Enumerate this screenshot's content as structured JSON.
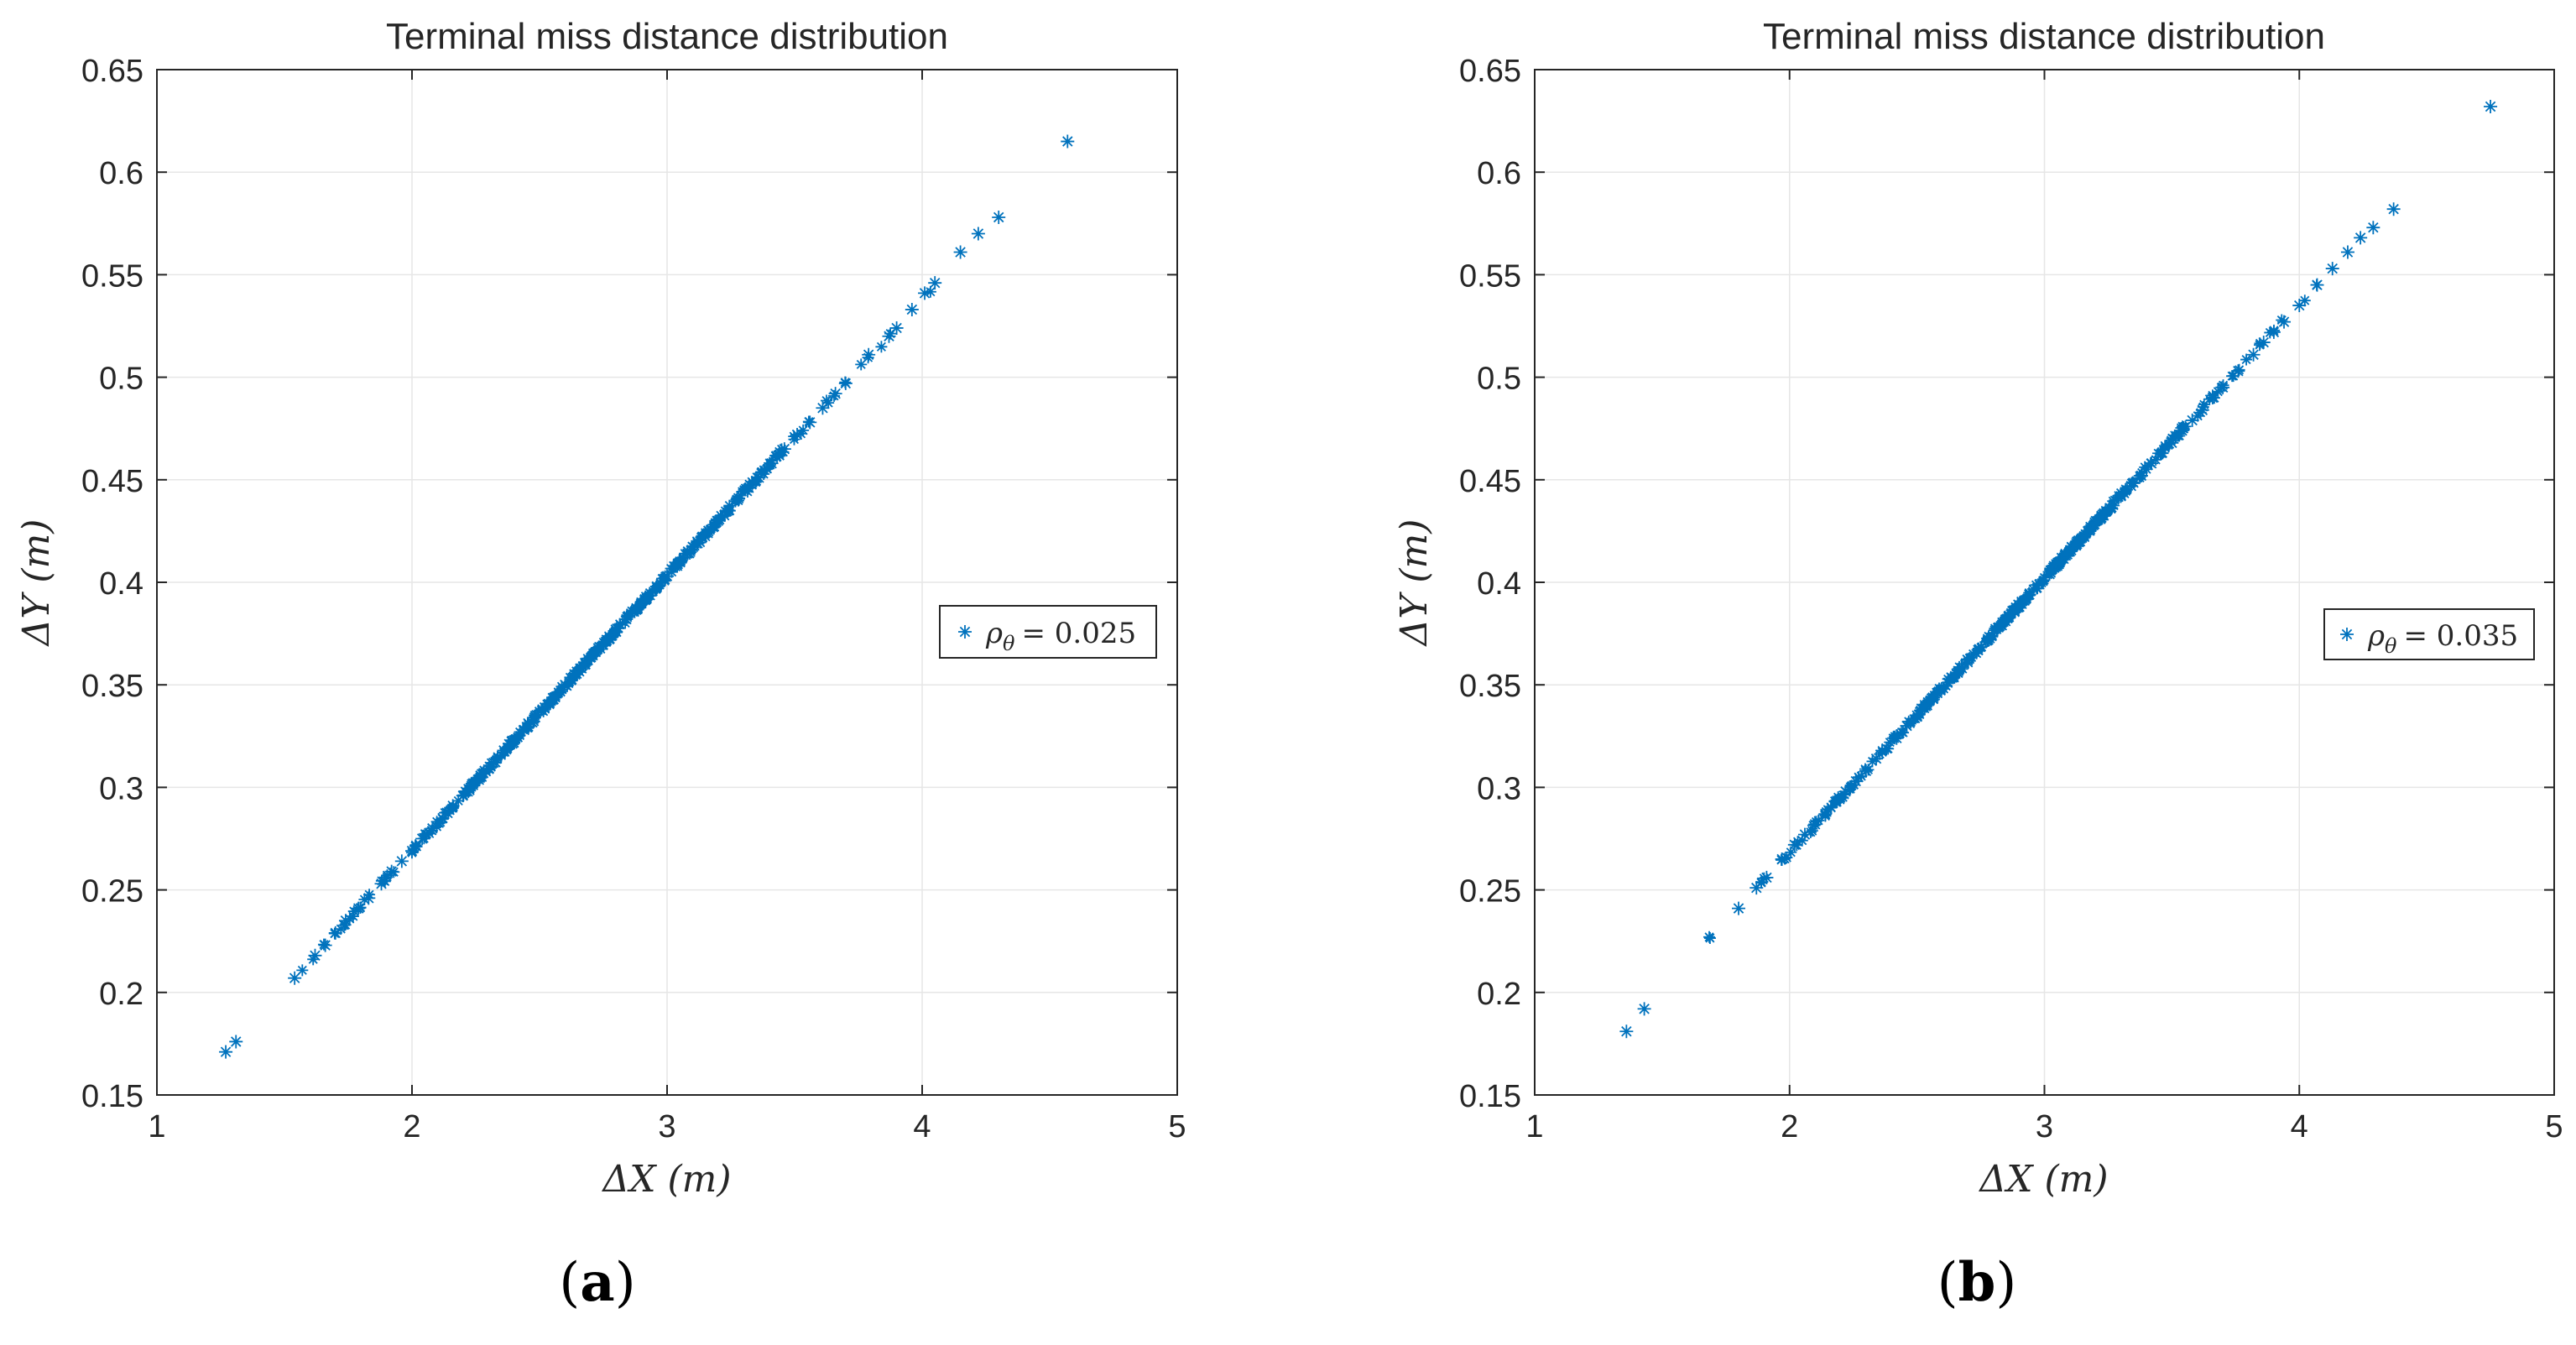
{
  "chart_data": [
    {
      "type": "scatter",
      "panel_label": "(a)",
      "title": "Terminal miss distance distribution",
      "xlabel": "ΔX (m)",
      "ylabel": "ΔY (m)",
      "xlim": [
        1,
        5
      ],
      "ylim": [
        0.15,
        0.65
      ],
      "xticks": [
        "1",
        "2",
        "3",
        "4",
        "5"
      ],
      "yticks": [
        "0.15",
        "0.2",
        "0.25",
        "0.3",
        "0.35",
        "0.4",
        "0.45",
        "0.5",
        "0.55",
        "0.6",
        "0.65"
      ],
      "grid": true,
      "legend": {
        "placement": "right",
        "entries": [
          "ρθ = 0.025"
        ],
        "symbol": "ρ",
        "subscript": "θ",
        "value": "= 0.025"
      },
      "series": [
        {
          "name": "ρθ = 0.025",
          "color": "#0072BD",
          "marker": "*",
          "line": {
            "slope": 0.1341,
            "intercept": 0.001,
            "x_min": 1.25,
            "x_max": 4.57
          },
          "x": [
            1.27,
            1.31,
            1.54,
            1.62,
            1.66,
            1.7,
            1.74,
            1.79,
            1.83,
            1.88,
            1.92,
            1.96,
            2.0,
            2.04,
            2.08,
            2.12,
            2.16,
            2.2,
            2.24,
            2.28,
            2.32,
            2.36,
            2.4,
            2.44,
            2.48,
            2.52,
            2.56,
            2.6,
            2.64,
            2.68,
            2.72,
            2.76,
            2.8,
            2.84,
            2.88,
            2.92,
            2.96,
            3.0,
            3.04,
            3.08,
            3.12,
            3.16,
            3.2,
            3.24,
            3.28,
            3.32,
            3.36,
            3.41,
            3.46,
            3.51,
            3.56,
            3.61,
            3.66,
            3.7,
            3.79,
            3.87,
            3.9,
            3.96,
            4.01,
            4.05,
            4.15,
            4.22,
            4.3,
            4.57
          ],
          "y": [
            0.171,
            0.176,
            0.207,
            0.218,
            0.223,
            0.229,
            0.235,
            0.241,
            0.246,
            0.253,
            0.259,
            0.264,
            0.269,
            0.275,
            0.28,
            0.285,
            0.291,
            0.296,
            0.302,
            0.307,
            0.312,
            0.318,
            0.323,
            0.328,
            0.334,
            0.339,
            0.344,
            0.35,
            0.355,
            0.36,
            0.366,
            0.371,
            0.376,
            0.382,
            0.387,
            0.392,
            0.398,
            0.403,
            0.408,
            0.414,
            0.419,
            0.424,
            0.43,
            0.435,
            0.441,
            0.446,
            0.451,
            0.458,
            0.465,
            0.472,
            0.478,
            0.485,
            0.492,
            0.497,
            0.511,
            0.52,
            0.524,
            0.533,
            0.541,
            0.546,
            0.561,
            0.57,
            0.578,
            0.615
          ]
        }
      ]
    },
    {
      "type": "scatter",
      "panel_label": "(b)",
      "title": "Terminal miss distance distribution",
      "xlabel": "ΔX (m)",
      "ylabel": "ΔY (m)",
      "xlim": [
        1,
        5
      ],
      "ylim": [
        0.15,
        0.65
      ],
      "xticks": [
        "1",
        "2",
        "3",
        "4",
        "5"
      ],
      "yticks": [
        "0.15",
        "0.2",
        "0.25",
        "0.3",
        "0.35",
        "0.4",
        "0.45",
        "0.5",
        "0.55",
        "0.6",
        "0.65"
      ],
      "grid": true,
      "legend": {
        "placement": "right",
        "entries": [
          "ρθ = 0.035"
        ],
        "symbol": "ρ",
        "subscript": "θ",
        "value": "= 0.035"
      },
      "series": [
        {
          "name": "ρθ = 0.035",
          "color": "#0072BD",
          "marker": "*",
          "line": {
            "slope": 0.1337,
            "intercept": 0.001,
            "x_min": 1.35,
            "x_max": 4.75
          },
          "x": [
            1.36,
            1.43,
            1.8,
            1.87,
            1.91,
            1.97,
            2.02,
            2.06,
            2.1,
            2.14,
            2.18,
            2.22,
            2.26,
            2.3,
            2.34,
            2.38,
            2.42,
            2.46,
            2.5,
            2.54,
            2.58,
            2.62,
            2.66,
            2.7,
            2.74,
            2.78,
            2.82,
            2.86,
            2.9,
            2.94,
            2.98,
            3.02,
            3.06,
            3.1,
            3.14,
            3.18,
            3.22,
            3.26,
            3.3,
            3.34,
            3.38,
            3.42,
            3.46,
            3.5,
            3.54,
            3.58,
            3.62,
            3.66,
            3.7,
            3.76,
            3.82,
            3.86,
            3.9,
            3.94,
            4.0,
            4.07,
            4.13,
            4.19,
            4.24,
            4.29,
            4.37,
            4.75
          ],
          "y": [
            0.181,
            0.192,
            0.241,
            0.251,
            0.256,
            0.265,
            0.272,
            0.277,
            0.282,
            0.287,
            0.293,
            0.298,
            0.303,
            0.308,
            0.314,
            0.319,
            0.324,
            0.33,
            0.335,
            0.34,
            0.346,
            0.351,
            0.356,
            0.362,
            0.367,
            0.372,
            0.378,
            0.383,
            0.388,
            0.394,
            0.399,
            0.404,
            0.41,
            0.415,
            0.42,
            0.426,
            0.431,
            0.436,
            0.442,
            0.447,
            0.452,
            0.458,
            0.463,
            0.468,
            0.474,
            0.479,
            0.484,
            0.49,
            0.495,
            0.503,
            0.511,
            0.517,
            0.522,
            0.527,
            0.535,
            0.545,
            0.553,
            0.561,
            0.568,
            0.573,
            0.582,
            0.632
          ]
        }
      ]
    }
  ]
}
